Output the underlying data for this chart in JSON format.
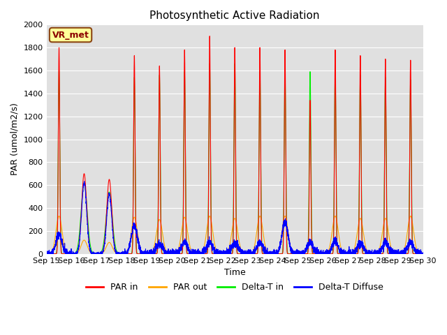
{
  "title": "Photosynthetic Active Radiation",
  "ylabel": "PAR (umol/m2/s)",
  "xlabel": "Time",
  "annotation": "VR_met",
  "ylim": [
    0,
    2000
  ],
  "bg_color": "#e0e0e0",
  "colors": {
    "PAR_in": "#ff0000",
    "PAR_out": "#ffa500",
    "Delta_T_in": "#00ee00",
    "Delta_T_Diffuse": "#0000ff"
  },
  "legend_labels": [
    "PAR in",
    "PAR out",
    "Delta-T in",
    "Delta-T Diffuse"
  ],
  "xtick_labels": [
    "Sep 15",
    "Sep 16",
    "Sep 17",
    "Sep 18",
    "Sep 19",
    "Sep 20",
    "Sep 21",
    "Sep 22",
    "Sep 23",
    "Sep 24",
    "Sep 25",
    "Sep 26",
    "Sep 27",
    "Sep 28",
    "Sep 29",
    "Sep 30"
  ],
  "num_days": 15,
  "pts_per_day": 288,
  "day_peak_PAR_in": [
    1800,
    700,
    650,
    1730,
    1640,
    1780,
    1900,
    1800,
    1800,
    1780,
    1340,
    1780,
    1730,
    1700,
    1690
  ],
  "day_peak_PAR_out": [
    330,
    120,
    100,
    320,
    300,
    320,
    330,
    310,
    330,
    330,
    0,
    330,
    310,
    310,
    330
  ],
  "day_peak_Delta_T_in": [
    1600,
    620,
    540,
    1540,
    1560,
    1590,
    1660,
    1660,
    1590,
    1590,
    1590,
    1580,
    1560,
    1540,
    1520
  ],
  "day_peak_Delta_T_Diffuse": [
    170,
    620,
    520,
    250,
    90,
    100,
    100,
    100,
    100,
    280,
    100,
    110,
    100,
    100,
    100
  ],
  "cloudy_days": [
    1,
    2
  ],
  "sigma_sharp": 0.028,
  "sigma_green": 0.032,
  "sigma_orange": 0.12,
  "sigma_cloudy_PAR": 0.1,
  "sigma_cloudy_green": 0.12,
  "sigma_cloudy_blue": 0.1,
  "noise_blue_scale": 15,
  "noise_seed": 42
}
